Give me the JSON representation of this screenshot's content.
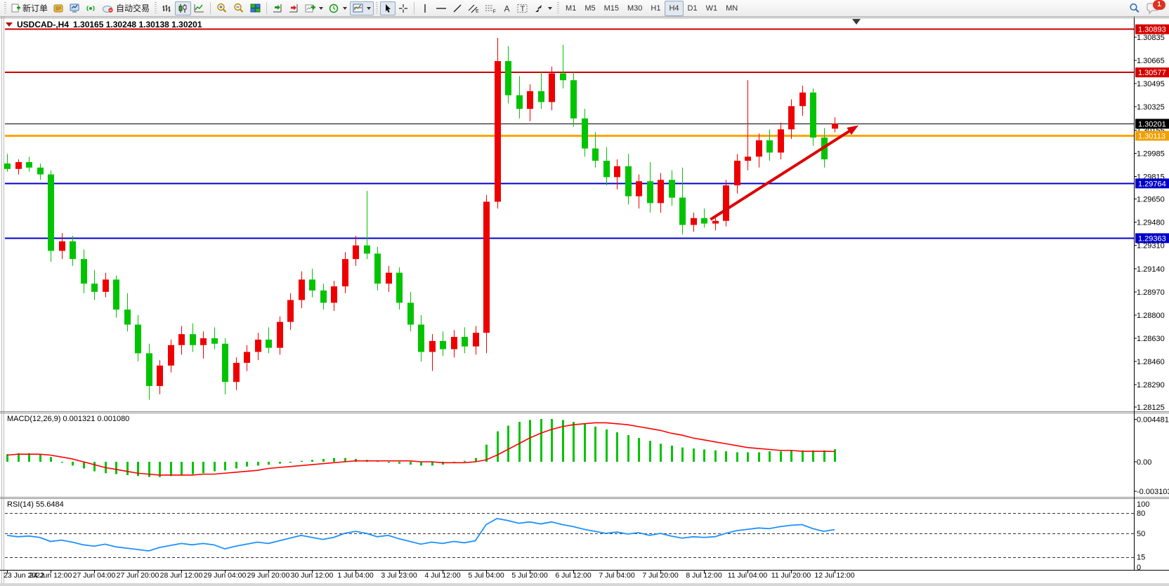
{
  "toolbar": {
    "new_order_label": "新订单",
    "autotrading_label": "自动交易",
    "timeframes": [
      "M1",
      "M5",
      "M15",
      "M30",
      "H1",
      "H4",
      "D1",
      "W1",
      "MN"
    ],
    "active_timeframe": "H4",
    "active_chart_mode": "candlestick",
    "badge_count": "1"
  },
  "chart": {
    "symbol_period": "USDCAD-,H4",
    "ohlc": "1.30165 1.30248 1.30138 1.30201"
  },
  "chart_data": {
    "type": "candlestick",
    "symbol": "USDCAD-",
    "period": "H4",
    "ylim": [
      1.28095,
      1.30974
    ],
    "grid": false,
    "x_label_every": 4,
    "x_labels": [
      "23 Jun 2022",
      "24 Jun 12:00",
      "27 Jun 04:00",
      "27 Jun 20:00",
      "28 Jun 12:00",
      "29 Jun 04:00",
      "29 Jun 20:00",
      "30 Jun 12:00",
      "1 Jul 04:00",
      "3 Jul 23:00",
      "4 Jul 12:00",
      "5 Jul 04:00",
      "5 Jul 20:00",
      "6 Jul 12:00",
      "7 Jul 04:00",
      "7 Jul 20:00",
      "8 Jul 12:00",
      "11 Jul 04:00",
      "11 Jul 20:00",
      "12 Jul 12:00"
    ],
    "price_ticks": [
      "1.30835",
      "1.30665",
      "1.30495",
      "1.30325",
      "1.30155",
      "1.29985",
      "1.29815",
      "1.29650",
      "1.29480",
      "1.29310",
      "1.29140",
      "1.28970",
      "1.28800",
      "1.28630",
      "1.28460",
      "1.28290",
      "1.28125"
    ],
    "price_boxes": [
      {
        "value": "1.30893",
        "color": "#d40000"
      },
      {
        "value": "1.30577",
        "color": "#d40000"
      },
      {
        "value": "1.30201",
        "color": "#000000"
      },
      {
        "value": "1.30113",
        "color": "#f0a000"
      },
      {
        "value": "1.29764",
        "color": "#0000c8"
      },
      {
        "value": "1.29363",
        "color": "#0000c8"
      }
    ],
    "hlines": [
      {
        "price": 1.30893,
        "color": "#cc0000",
        "w": 2
      },
      {
        "price": 1.30577,
        "color": "#cc0000",
        "w": 2
      },
      {
        "price": 1.30201,
        "color": "#000000",
        "w": 1
      },
      {
        "price": 1.30113,
        "color": "#ffa500",
        "w": 3
      },
      {
        "price": 1.29764,
        "color": "#0000cc",
        "w": 2
      },
      {
        "price": 1.29363,
        "color": "#0000cc",
        "w": 2
      }
    ],
    "trend_arrow": {
      "from_bar": 64.6,
      "from_price": 1.295,
      "to_bar": 78.2,
      "to_price": 1.3019,
      "color": "#dd0000"
    },
    "shift_marker_bar": 78,
    "colors": {
      "bull": "#ee0000",
      "bear": "#00c400",
      "macd_hist": "#00c400",
      "macd_signal": "#ff0000",
      "rsi_line": "#1e90ff"
    },
    "candles": [
      [
        1.2991,
        1.2998,
        1.2985,
        1.2987
      ],
      [
        1.2987,
        1.2994,
        1.2983,
        1.2992
      ],
      [
        1.2992,
        1.2996,
        1.2985,
        1.2988
      ],
      [
        1.2988,
        1.2991,
        1.2979,
        1.2983
      ],
      [
        1.2983,
        1.2986,
        1.2919,
        1.2927
      ],
      [
        1.2927,
        1.294,
        1.2921,
        1.2934
      ],
      [
        1.2934,
        1.2938,
        1.2916,
        1.2921
      ],
      [
        1.2921,
        1.2928,
        1.2896,
        1.2903
      ],
      [
        1.2903,
        1.2913,
        1.2891,
        1.2897
      ],
      [
        1.2897,
        1.2911,
        1.2893,
        1.2906
      ],
      [
        1.2906,
        1.2909,
        1.2878,
        1.2884
      ],
      [
        1.2884,
        1.2896,
        1.2868,
        1.2873
      ],
      [
        1.2873,
        1.288,
        1.2846,
        1.2852
      ],
      [
        1.2852,
        1.2859,
        1.2818,
        1.2828
      ],
      [
        1.2828,
        1.2847,
        1.2822,
        1.2843
      ],
      [
        1.2843,
        1.2862,
        1.2838,
        1.2858
      ],
      [
        1.2858,
        1.2872,
        1.2851,
        1.2866
      ],
      [
        1.2866,
        1.2874,
        1.2853,
        1.2858
      ],
      [
        1.2858,
        1.2868,
        1.2848,
        1.2863
      ],
      [
        1.2863,
        1.2871,
        1.2855,
        1.2859
      ],
      [
        1.2859,
        1.2863,
        1.2822,
        1.2831
      ],
      [
        1.2831,
        1.2849,
        1.2825,
        1.2845
      ],
      [
        1.2845,
        1.2858,
        1.2839,
        1.2853
      ],
      [
        1.2853,
        1.2867,
        1.2847,
        1.2862
      ],
      [
        1.2862,
        1.2871,
        1.2852,
        1.2856
      ],
      [
        1.2856,
        1.2879,
        1.2851,
        1.2875
      ],
      [
        1.2875,
        1.2896,
        1.2869,
        1.2891
      ],
      [
        1.2891,
        1.2912,
        1.2885,
        1.2906
      ],
      [
        1.2906,
        1.2914,
        1.2893,
        1.2898
      ],
      [
        1.2898,
        1.2903,
        1.2884,
        1.2889
      ],
      [
        1.2889,
        1.2905,
        1.2883,
        1.2901
      ],
      [
        1.2901,
        1.2926,
        1.2896,
        1.2921
      ],
      [
        1.2921,
        1.2938,
        1.2916,
        1.2931
      ],
      [
        1.2931,
        1.2971,
        1.2921,
        1.2925
      ],
      [
        1.2925,
        1.293,
        1.2898,
        1.2903
      ],
      [
        1.2903,
        1.2916,
        1.2897,
        1.2911
      ],
      [
        1.2911,
        1.2915,
        1.2884,
        1.2889
      ],
      [
        1.2889,
        1.2897,
        1.2868,
        1.2873
      ],
      [
        1.2873,
        1.288,
        1.2846,
        1.2853
      ],
      [
        1.2853,
        1.2866,
        1.2839,
        1.2861
      ],
      [
        1.2861,
        1.2868,
        1.285,
        1.2855
      ],
      [
        1.2855,
        1.2869,
        1.2849,
        1.2864
      ],
      [
        1.2864,
        1.2871,
        1.2852,
        1.2857
      ],
      [
        1.2857,
        1.2872,
        1.2851,
        1.2867
      ],
      [
        1.2867,
        1.2968,
        1.2852,
        1.2963
      ],
      [
        1.2963,
        1.3083,
        1.2958,
        1.3066
      ],
      [
        1.3066,
        1.3077,
        1.3035,
        1.3041
      ],
      [
        1.3041,
        1.3055,
        1.3024,
        1.3031
      ],
      [
        1.3031,
        1.3049,
        1.3022,
        1.3044
      ],
      [
        1.3044,
        1.3058,
        1.3031,
        1.3036
      ],
      [
        1.3036,
        1.3062,
        1.303,
        1.3057
      ],
      [
        1.3057,
        1.3078,
        1.3046,
        1.3052
      ],
      [
        1.3052,
        1.3058,
        1.3018,
        1.3024
      ],
      [
        1.3024,
        1.3031,
        1.2996,
        1.3002
      ],
      [
        1.3002,
        1.3014,
        1.2988,
        1.2993
      ],
      [
        1.2993,
        1.3003,
        1.2975,
        1.2981
      ],
      [
        1.2981,
        1.2994,
        1.2972,
        1.2989
      ],
      [
        1.2989,
        1.2998,
        1.2961,
        1.2967
      ],
      [
        1.2967,
        1.2983,
        1.2958,
        1.2978
      ],
      [
        1.2978,
        1.2992,
        1.2955,
        1.2962
      ],
      [
        1.2962,
        1.2984,
        1.2955,
        1.2979
      ],
      [
        1.2979,
        1.2986,
        1.296,
        1.2966
      ],
      [
        1.2966,
        1.2988,
        1.2939,
        1.2946
      ],
      [
        1.2946,
        1.2955,
        1.2941,
        1.2951
      ],
      [
        1.2951,
        1.2958,
        1.2944,
        1.2947
      ],
      [
        1.2947,
        1.2952,
        1.2942,
        1.2949
      ],
      [
        1.2949,
        1.2979,
        1.2945,
        1.2975
      ],
      [
        1.2975,
        1.2998,
        1.2969,
        1.2993
      ],
      [
        1.2993,
        1.3052,
        1.2986,
        1.2996
      ],
      [
        1.2996,
        1.3013,
        1.2988,
        1.3008
      ],
      [
        1.3008,
        1.3016,
        1.2993,
        1.2999
      ],
      [
        1.2999,
        1.3021,
        1.2994,
        1.3016
      ],
      [
        1.3016,
        1.3038,
        1.3009,
        1.3033
      ],
      [
        1.3033,
        1.3048,
        1.3026,
        1.3043
      ],
      [
        1.3043,
        1.3046,
        1.3004,
        1.301
      ],
      [
        1.301,
        1.3017,
        1.2988,
        1.2994
      ],
      [
        1.30165,
        1.30248,
        1.30138,
        1.30201
      ]
    ],
    "macd": {
      "label": "MACD(12,26,9)",
      "values": "0.001321 0.001080",
      "ticks": [
        {
          "v": 0.004481,
          "label": "0.004481"
        },
        {
          "v": 0,
          "label": "0.00"
        },
        {
          "v": -0.003103,
          "label": "-0.003103"
        }
      ],
      "hist": [
        0.0008,
        0.0009,
        0.0009,
        0.0008,
        0.0005,
        -0.0001,
        -0.0004,
        -0.0007,
        -0.001,
        -0.0012,
        -0.0013,
        -0.0014,
        -0.0015,
        -0.0016,
        -0.0016,
        -0.0015,
        -0.0014,
        -0.0013,
        -0.0012,
        -0.001,
        -0.0009,
        -0.0007,
        -0.0005,
        -0.0004,
        -0.0003,
        -0.0002,
        -0.0001,
        0.0001,
        0.0002,
        0.0003,
        0.0004,
        0.0004,
        0.0003,
        0.0002,
        0.0001,
        -0.0001,
        -0.0002,
        -0.0003,
        -0.0004,
        -0.0004,
        -0.0003,
        -0.0001,
        0.0001,
        0.0004,
        0.0018,
        0.0032,
        0.0038,
        0.0042,
        0.0044,
        0.0045,
        0.0045,
        0.0044,
        0.0042,
        0.004,
        0.0037,
        0.0034,
        0.0031,
        0.0028,
        0.0025,
        0.0022,
        0.0019,
        0.0017,
        0.0015,
        0.0014,
        0.0013,
        0.0012,
        0.0011,
        0.001,
        0.001,
        0.001,
        0.0011,
        0.0011,
        0.0012,
        0.0012,
        0.0012,
        0.0012,
        0.001321
      ],
      "signal": [
        0.0007,
        0.0008,
        0.0008,
        0.0008,
        0.0007,
        0.0005,
        0.0003,
        0.0,
        -0.0003,
        -0.0006,
        -0.0008,
        -0.001,
        -0.0012,
        -0.0013,
        -0.0014,
        -0.0014,
        -0.0014,
        -0.0014,
        -0.0013,
        -0.0013,
        -0.0012,
        -0.0011,
        -0.001,
        -0.0009,
        -0.0007,
        -0.0006,
        -0.0005,
        -0.0004,
        -0.0003,
        -0.0002,
        -0.0001,
        0.0,
        0.0001,
        0.0001,
        0.0001,
        0.0001,
        0.0001,
        0.0001,
        0.0,
        0.0,
        -0.0001,
        -0.0001,
        -0.0001,
        0.0,
        0.0002,
        0.0007,
        0.0013,
        0.0019,
        0.0025,
        0.003,
        0.0034,
        0.0037,
        0.0039,
        0.004,
        0.0041,
        0.0041,
        0.004,
        0.0039,
        0.0037,
        0.0035,
        0.0033,
        0.003,
        0.0028,
        0.0025,
        0.0023,
        0.0021,
        0.0019,
        0.0017,
        0.0015,
        0.0014,
        0.0013,
        0.0012,
        0.0012,
        0.0011,
        0.0011,
        0.0011,
        0.00108
      ]
    },
    "rsi": {
      "label": "RSI(14)",
      "value": "55.6484",
      "ticks": [
        "100",
        "80",
        "50",
        "15",
        "0"
      ],
      "levels": [
        80,
        50,
        15
      ],
      "series": [
        47,
        45,
        46,
        44,
        38,
        40,
        37,
        33,
        31,
        34,
        30,
        28,
        26,
        24,
        29,
        32,
        35,
        33,
        35,
        33,
        27,
        31,
        34,
        37,
        35,
        39,
        43,
        47,
        44,
        41,
        44,
        50,
        53,
        50,
        45,
        47,
        42,
        38,
        34,
        37,
        35,
        38,
        36,
        39,
        63,
        72,
        69,
        65,
        67,
        64,
        67,
        63,
        60,
        56,
        53,
        50,
        52,
        49,
        51,
        47,
        50,
        46,
        43,
        45,
        44,
        45,
        50,
        54,
        56,
        58,
        57,
        60,
        62,
        63,
        57,
        53,
        55.6484
      ]
    }
  }
}
